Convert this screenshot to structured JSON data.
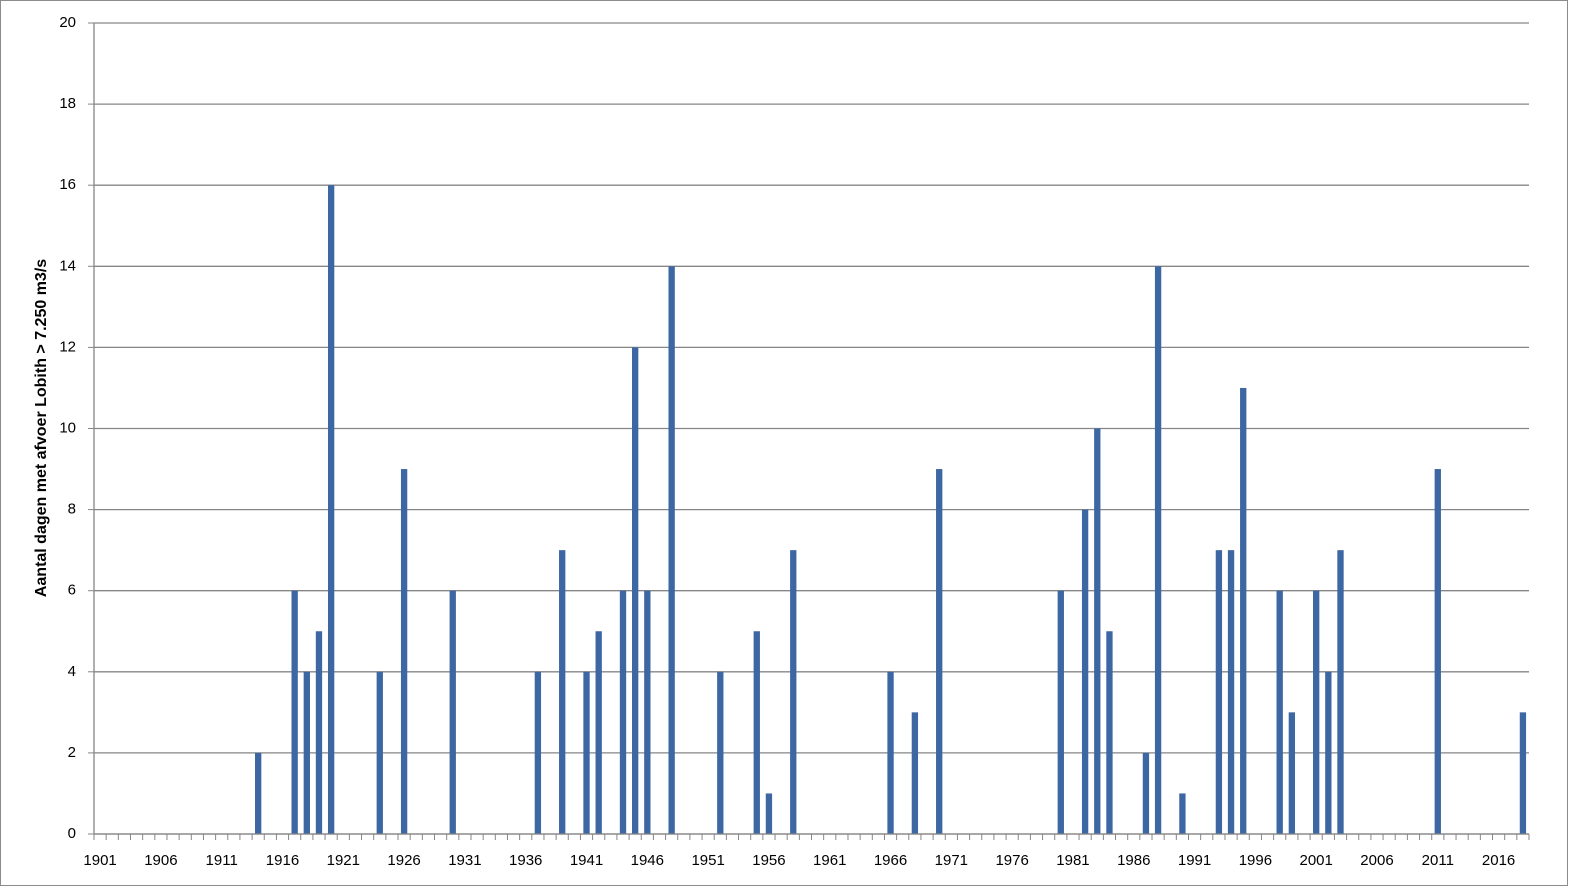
{
  "chart_data": {
    "type": "bar",
    "y_label": "Aantal dagen met afvoer Lobith > 7.250 m3/s",
    "categories": [
      "1901",
      null,
      null,
      null,
      null,
      "1906",
      null,
      null,
      null,
      null,
      "1911",
      null,
      null,
      null,
      null,
      "1916",
      null,
      null,
      null,
      null,
      "1921",
      null,
      null,
      null,
      null,
      "1926",
      null,
      null,
      null,
      null,
      "1931",
      null,
      null,
      null,
      null,
      "1936",
      null,
      null,
      null,
      null,
      "1941",
      null,
      null,
      null,
      null,
      "1946",
      null,
      null,
      null,
      null,
      "1951",
      null,
      null,
      null,
      null,
      "1956",
      null,
      null,
      null,
      null,
      "1961",
      null,
      null,
      null,
      null,
      "1966",
      null,
      null,
      null,
      null,
      "1971",
      null,
      null,
      null,
      null,
      "1976",
      null,
      null,
      null,
      null,
      "1981",
      null,
      null,
      null,
      null,
      "1986",
      null,
      null,
      null,
      null,
      "1991",
      null,
      null,
      null,
      null,
      "1996",
      null,
      null,
      null,
      null,
      "2001",
      null,
      null,
      null,
      null,
      "2006",
      null,
      null,
      null,
      null,
      "2011",
      null,
      null,
      null,
      null,
      "2016",
      null,
      null
    ],
    "values": [
      0,
      0,
      0,
      0,
      0,
      0,
      0,
      0,
      0,
      0,
      0,
      0,
      0,
      2,
      0,
      0,
      6,
      4,
      5,
      16,
      0,
      0,
      0,
      4,
      0,
      9,
      0,
      0,
      0,
      6,
      0,
      0,
      0,
      0,
      0,
      0,
      4,
      0,
      7,
      0,
      4,
      5,
      0,
      6,
      12,
      6,
      0,
      14,
      0,
      0,
      0,
      4,
      0,
      0,
      5,
      1,
      0,
      7,
      0,
      0,
      0,
      0,
      0,
      0,
      0,
      4,
      0,
      3,
      0,
      9,
      0,
      0,
      0,
      0,
      0,
      0,
      0,
      0,
      0,
      6,
      0,
      8,
      10,
      5,
      0,
      0,
      2,
      14,
      0,
      1,
      0,
      0,
      7,
      7,
      11,
      0,
      0,
      6,
      3,
      0,
      6,
      4,
      7,
      0,
      0,
      0,
      0,
      0,
      0,
      0,
      9,
      0,
      0,
      0,
      0,
      0,
      0,
      3
    ],
    "color": "#3d67a3",
    "ylim": [
      0,
      20
    ],
    "yticks": [
      0,
      2,
      4,
      6,
      8,
      10,
      12,
      14,
      16,
      18,
      20
    ],
    "grid": true
  }
}
